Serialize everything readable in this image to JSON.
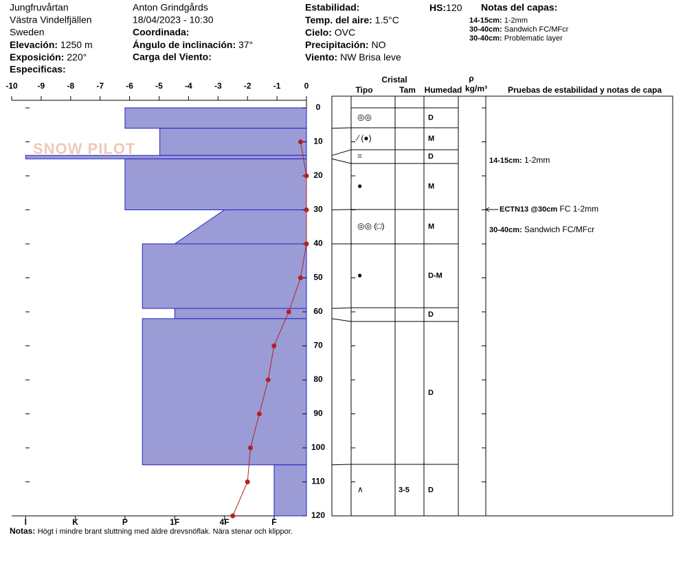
{
  "header": {
    "location": "Jungfruvårtan",
    "area": "Västra Vindelfjällen",
    "country": "Sweden",
    "elevation": {
      "label": "Elevación:",
      "value": "1250 m"
    },
    "aspect": {
      "label": "Exposición:",
      "value": "220°"
    },
    "specifics": {
      "label": "Especificas:"
    },
    "observer": "Anton Grindgårds",
    "datetime": "18/04/2023 - 10:30",
    "coordinates": {
      "label": "Coordinada:"
    },
    "slope": {
      "label": "Ángulo de inclinación:",
      "value": "37°"
    },
    "wind_load": {
      "label": "Carga del Viento:"
    },
    "stability": {
      "label": "Estabilidad:"
    },
    "air_temp": {
      "label": "Temp. del aire:",
      "value": "1.5°C"
    },
    "sky": {
      "label": "Cielo:",
      "value": "OVC"
    },
    "precip": {
      "label": "Precipitación:",
      "value": "NO"
    },
    "wind": {
      "label": "Viento:",
      "value": "NW Brisa leve"
    },
    "hs": {
      "label": "HS:",
      "value": "120"
    },
    "layer_notes": {
      "title": "Notas del capas:",
      "items": [
        {
          "range": "14-15cm:",
          "text": "1-2mm"
        },
        {
          "range": "30-40cm:",
          "text": "Sandwich FC/MFcr"
        },
        {
          "range": "30-40cm:",
          "text": "Problematic layer"
        }
      ]
    }
  },
  "logo": "SNOW PILOT",
  "chart_data": {
    "type": "snow_profile",
    "ylim": [
      0,
      120
    ],
    "yticks": [
      0,
      10,
      20,
      30,
      40,
      50,
      60,
      70,
      80,
      90,
      100,
      110,
      120
    ],
    "temperature": {
      "xlim": [
        -10,
        0
      ],
      "xticks": [
        -10,
        -9,
        -8,
        -7,
        -6,
        -5,
        -4,
        -3,
        -2,
        -1,
        0
      ],
      "color": "#b22222",
      "depths": [
        10,
        20,
        30,
        40,
        50,
        60,
        70,
        80,
        90,
        100,
        110,
        120
      ],
      "values": [
        -0.2,
        0,
        0,
        0,
        -0.2,
        -0.6,
        -1.1,
        -1.3,
        -1.6,
        -1.9,
        -2.0,
        -2.5
      ]
    },
    "hardness": {
      "xlim": [
        0.35,
        6.28
      ],
      "color": "#9b9bd6",
      "xticks": [
        {
          "value": 6,
          "label": "I"
        },
        {
          "value": 5,
          "label": "K"
        },
        {
          "value": 4,
          "label": "P"
        },
        {
          "value": 3,
          "label": "1F"
        },
        {
          "value": 2,
          "label": "4F"
        },
        {
          "value": 1,
          "label": "F"
        }
      ]
    },
    "columns": {
      "crystal": "Cristal",
      "type": "Tipo",
      "size": "Tam",
      "moisture": "Humedad",
      "density": "ρ",
      "density_unit": "kg/m³",
      "tests": "Pruebas de estabilidad y notas de capa"
    },
    "layers": [
      {
        "top": 0,
        "bottom": 6,
        "hardness_top": 4,
        "hardness_bottom": 4,
        "grain": "◎◎",
        "moisture": "D"
      },
      {
        "top": 6,
        "bottom": 14,
        "hardness_top": 3.3,
        "hardness_bottom": 3.3,
        "grain": "⁄ (●)",
        "moisture": "M"
      },
      {
        "top": 14,
        "bottom": 15,
        "hardness_top": 6,
        "hardness_bottom": 6,
        "grain": "=",
        "moisture": "D"
      },
      {
        "top": 15,
        "bottom": 30,
        "hardness_top": 4,
        "hardness_bottom": 4,
        "grain": "●",
        "moisture": "M"
      },
      {
        "top": 30,
        "bottom": 40,
        "hardness_top": 2,
        "hardness_bottom": 3,
        "grain": "◎◎ (□)",
        "moisture": "M"
      },
      {
        "top": 40,
        "bottom": 59,
        "hardness_top": 3.65,
        "hardness_bottom": 3.65,
        "grain": "●",
        "moisture": "D-M"
      },
      {
        "top": 59,
        "bottom": 62,
        "hardness_top": 3,
        "hardness_bottom": 3,
        "moisture": "D"
      },
      {
        "top": 62,
        "bottom": 105,
        "hardness_top": 3.65,
        "hardness_bottom": 3.65,
        "moisture": "D"
      },
      {
        "top": 105,
        "bottom": 120,
        "hardness_top": 1,
        "hardness_bottom": 1,
        "grain": "∧",
        "size": "3-5",
        "moisture": "D"
      }
    ],
    "test_notes": [
      {
        "label": "14-15cm:",
        "text": "1-2mm"
      },
      {
        "label": "ECTN13 @30cm",
        "text": "FC 1-2mm"
      },
      {
        "label": "30-40cm:",
        "text": "Sandwich FC/MFcr"
      }
    ],
    "notes": {
      "label": "Notas:",
      "text": "Högt i mindre brant sluttning med äldre drevsnöflak. Nära stenar och klippor."
    }
  }
}
